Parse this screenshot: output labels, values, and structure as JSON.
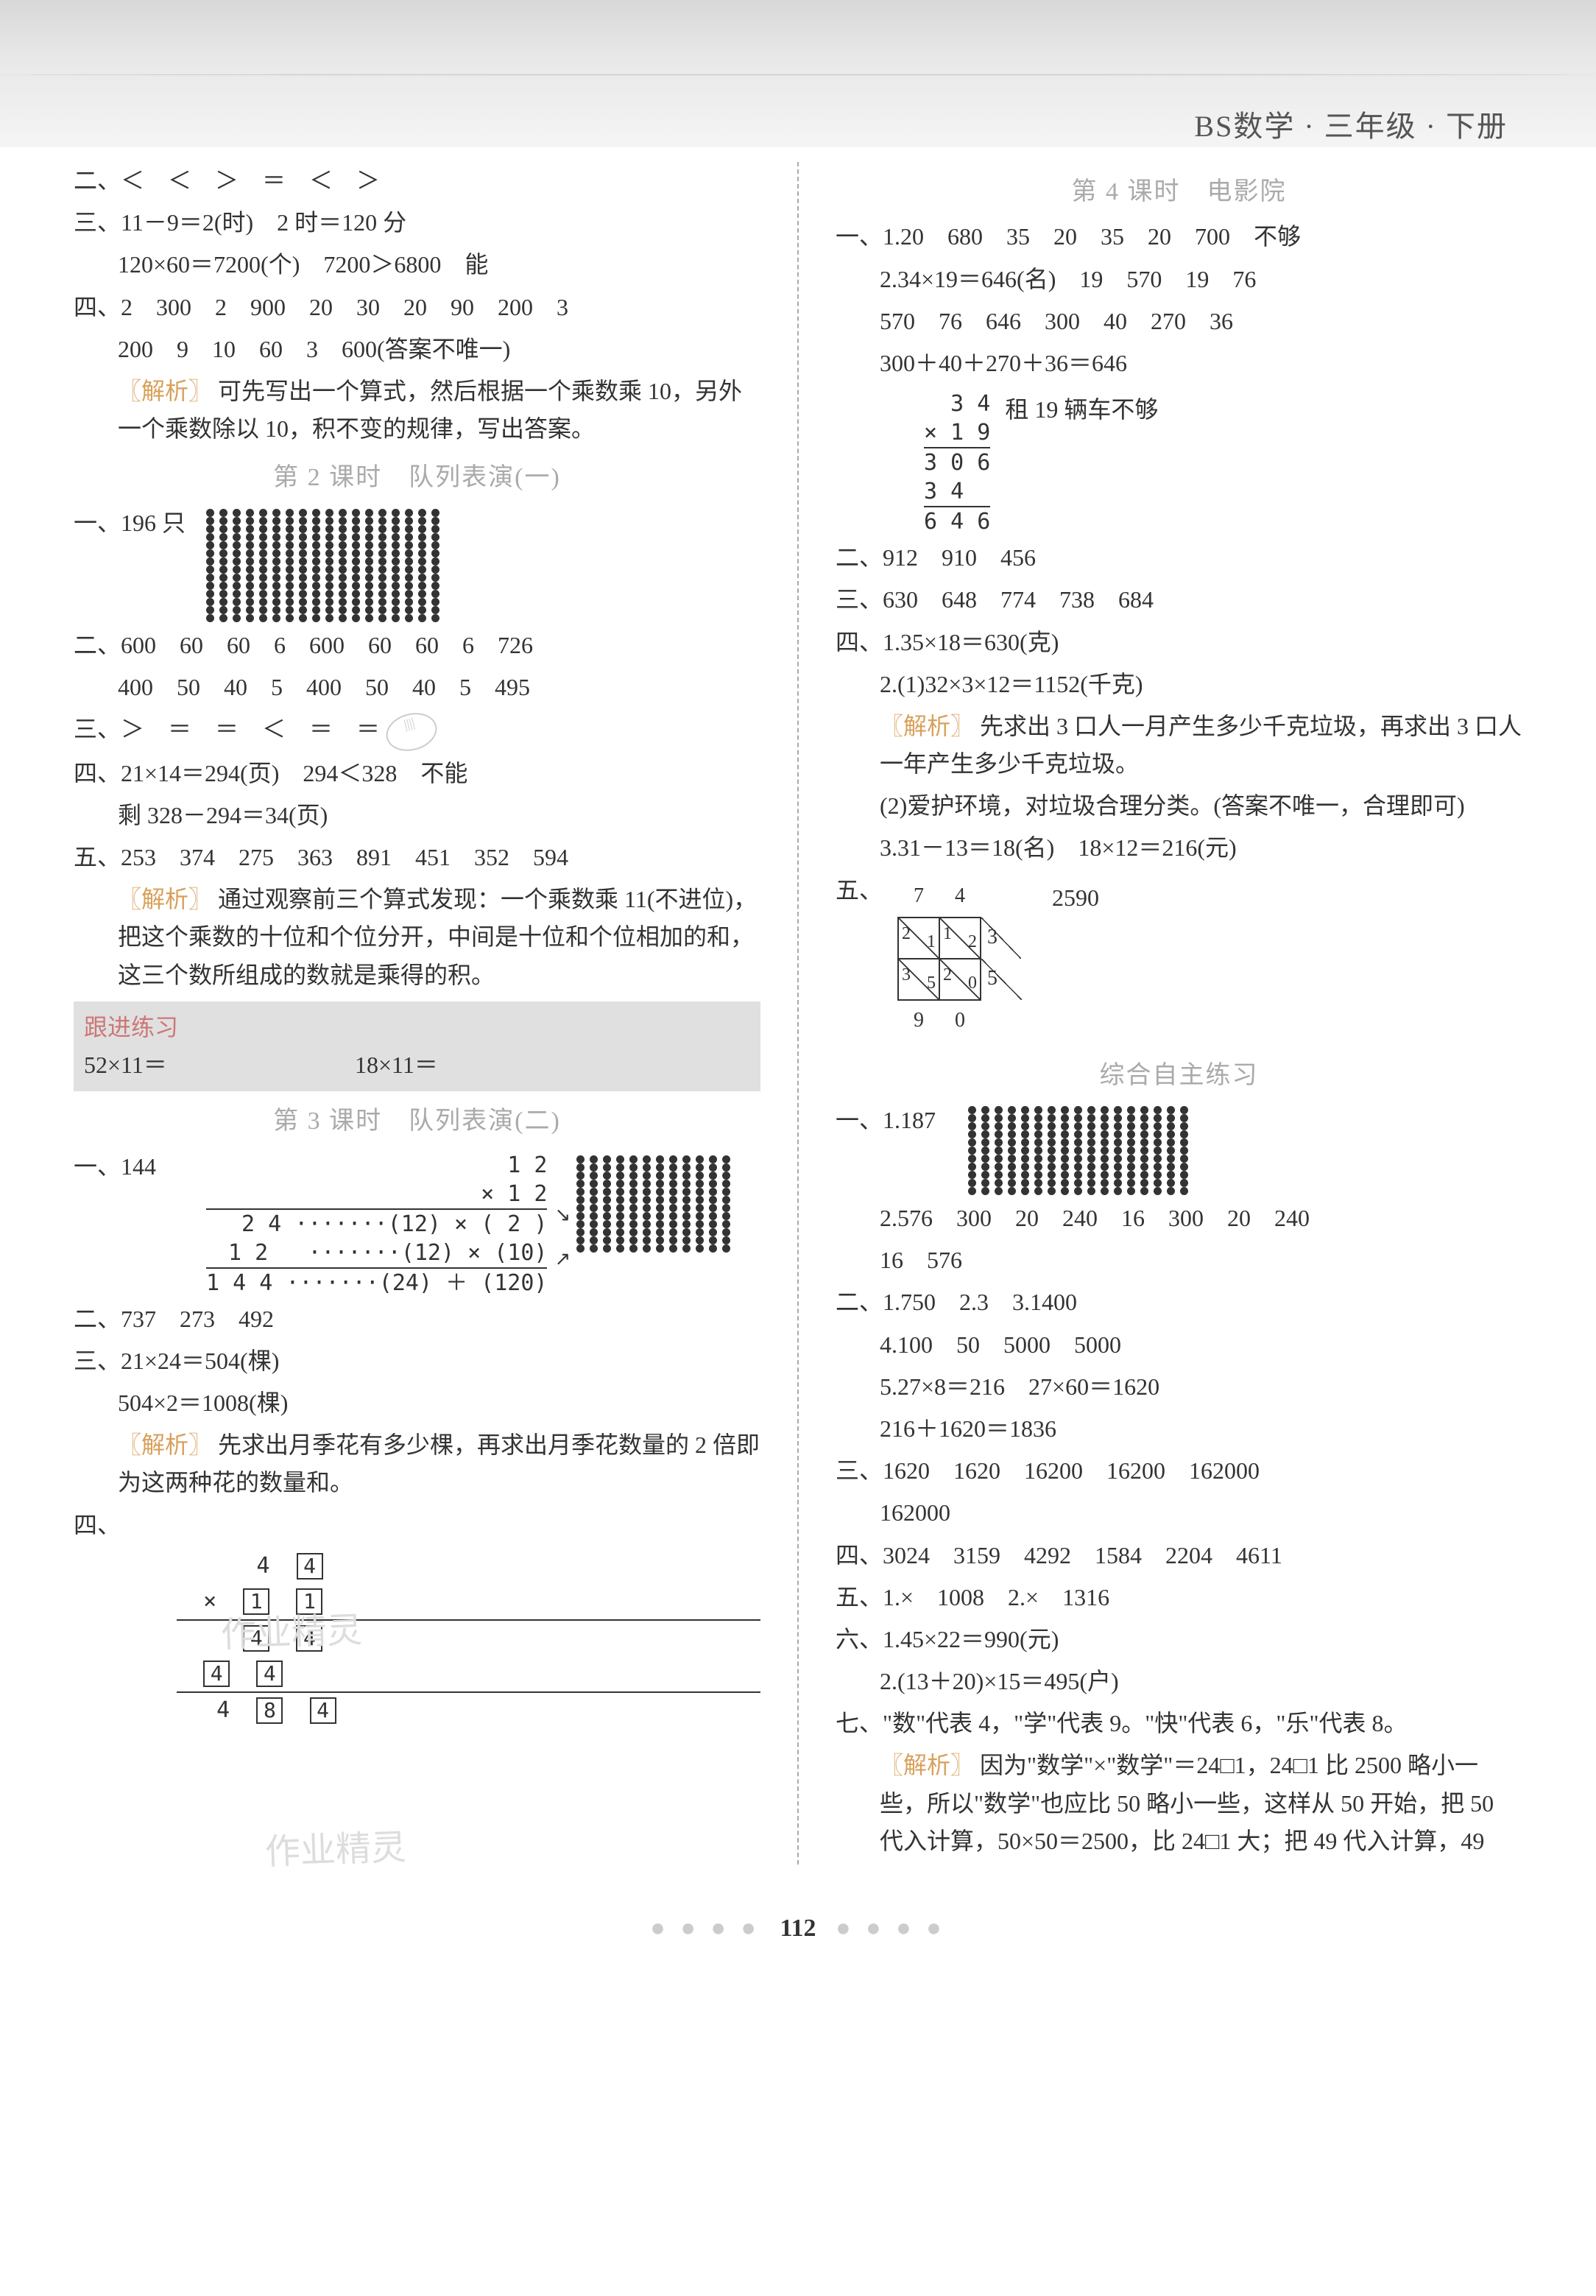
{
  "book_title": "BS数学 · 三年级 · 下册",
  "page_number": "112",
  "left": {
    "l2_prefix": "二、",
    "l2_seq": "＜　＜　＞　＝　＜　＞",
    "l3a": "三、11－9＝2(时)　2 时＝120 分",
    "l3b": "120×60＝7200(个)　7200＞6800　能",
    "l4a": "四、2　300　2　900　20　30　20　90　200　3",
    "l4b": "200　9　10　60　3　600(答案不唯一)",
    "l4_analysis_label": "〖解析〗",
    "l4_analysis": "可先写出一个算式，然后根据一个乘数乘 10，另外一个乘数除以 10，积不变的规律，写出答案。",
    "title_l2": "第 2 课时　队列表演(一)",
    "p2_q1": "一、196 只",
    "p2_q2a": "二、600　60　60　6　600　60　60　6　726",
    "p2_q2b": "400　50　40　5　400　50　40　5　495",
    "p2_q3": "三、＞　＝　＝　＜　＝　＝",
    "p2_q4a": "四、21×14＝294(页)　294＜328　不能",
    "p2_q4b": "剩 328－294＝34(页)",
    "p2_q5": "五、253　374　275　363　891　451　352　594",
    "p2_analysis_label": "〖解析〗",
    "p2_analysis": "通过观察前三个算式发现：一个乘数乘 11(不进位)，把这个乘数的十位和个位分开，中间是十位和个位相加的和，这三个数所组成的数就是乘得的积。",
    "practice_label": "跟进练习",
    "practice_a": "52×11＝",
    "practice_b": "18×11＝",
    "title_l3": "第 3 课时　队列表演(二)",
    "p3_q1": "一、144",
    "p3_mul_notes": "(12) × ( 2 )　　(12) × (10)　　(24) ＋ (120)",
    "p3_q2": "二、737　273　492",
    "p3_q3a": "三、21×24＝504(棵)",
    "p3_q3b": "504×2＝1008(棵)",
    "p3_analysis_label": "〖解析〗",
    "p3_analysis": "先求出月季花有多少棵，再求出月季花数量的 2 倍即为这两种花的数量和。",
    "p3_q4_label": "四、",
    "watermark1": "作业精灵",
    "watermark2": "作业精灵"
  },
  "right": {
    "title_l4": "第 4 课时　电影院",
    "r1_1": "一、1.20　680　35　20　35　20　700　不够",
    "r1_2a": "2.34×19＝646(名)　19　570　19　76",
    "r1_2b": "570　76　646　300　40　270　36",
    "r1_2c": "300＋40＋270＋36＝646",
    "r1_note": "租 19 辆车不够",
    "r1_mul": {
      "a": "34",
      "b": "19",
      "p1": "306",
      "p2": "34",
      "res": "646"
    },
    "r2": "二、912　910　456",
    "r3": "三、630　648　774　738　684",
    "r4_1": "四、1.35×18＝630(克)",
    "r4_2a": "2.(1)32×3×12＝1152(千克)",
    "r4_analysis_label": "〖解析〗",
    "r4_analysis": "先求出 3 口人一月产生多少千克垃圾，再求出 3 口人一年产生多少千克垃圾。",
    "r4_2b": "(2)爱护环境，对垃圾合理分类。(答案不唯一，合理即可)",
    "r4_3": "3.31－13＝18(名)　18×12＝216(元)",
    "r5_label": "五、",
    "r5_top": "7　4",
    "r5_side": "3　5",
    "r5_result": "2590",
    "r5_grid": [
      [
        "2",
        "1",
        "1",
        "2"
      ],
      [
        "3",
        "5",
        "2",
        "0"
      ]
    ],
    "r5_bottom": "9　0",
    "title_zh": "综合自主练习",
    "z1_1": "一、1.187",
    "z1_2a": "2.576　300　20　240　16　300　20　240",
    "z1_2b": "16　576",
    "z2_1": "二、1.750　2.3　3.1400",
    "z2_4": "4.100　50　5000　5000",
    "z2_5a": "5.27×8＝216　27×60＝1620",
    "z2_5b": "216＋1620＝1836",
    "z3a": "三、1620　1620　16200　16200　162000",
    "z3b": "162000",
    "z4": "四、3024　3159　4292　1584　2204　4611",
    "z5": "五、1.×　1008　2.×　1316",
    "z6_1": "六、1.45×22＝990(元)",
    "z6_2": "2.(13＋20)×15＝495(户)",
    "z7a": "七、\"数\"代表 4，\"学\"代表 9。\"快\"代表 6，\"乐\"代表 8。",
    "z7_analysis_label": "〖解析〗",
    "z7_analysis": "因为\"数学\"×\"数学\"＝24□1，24□1 比 2500 略小一些，所以\"数学\"也应比 50 略小一些，这样从 50 开始，把 50 代入计算，50×50＝2500，比 24□1 大；把 49 代入计算，49"
  }
}
